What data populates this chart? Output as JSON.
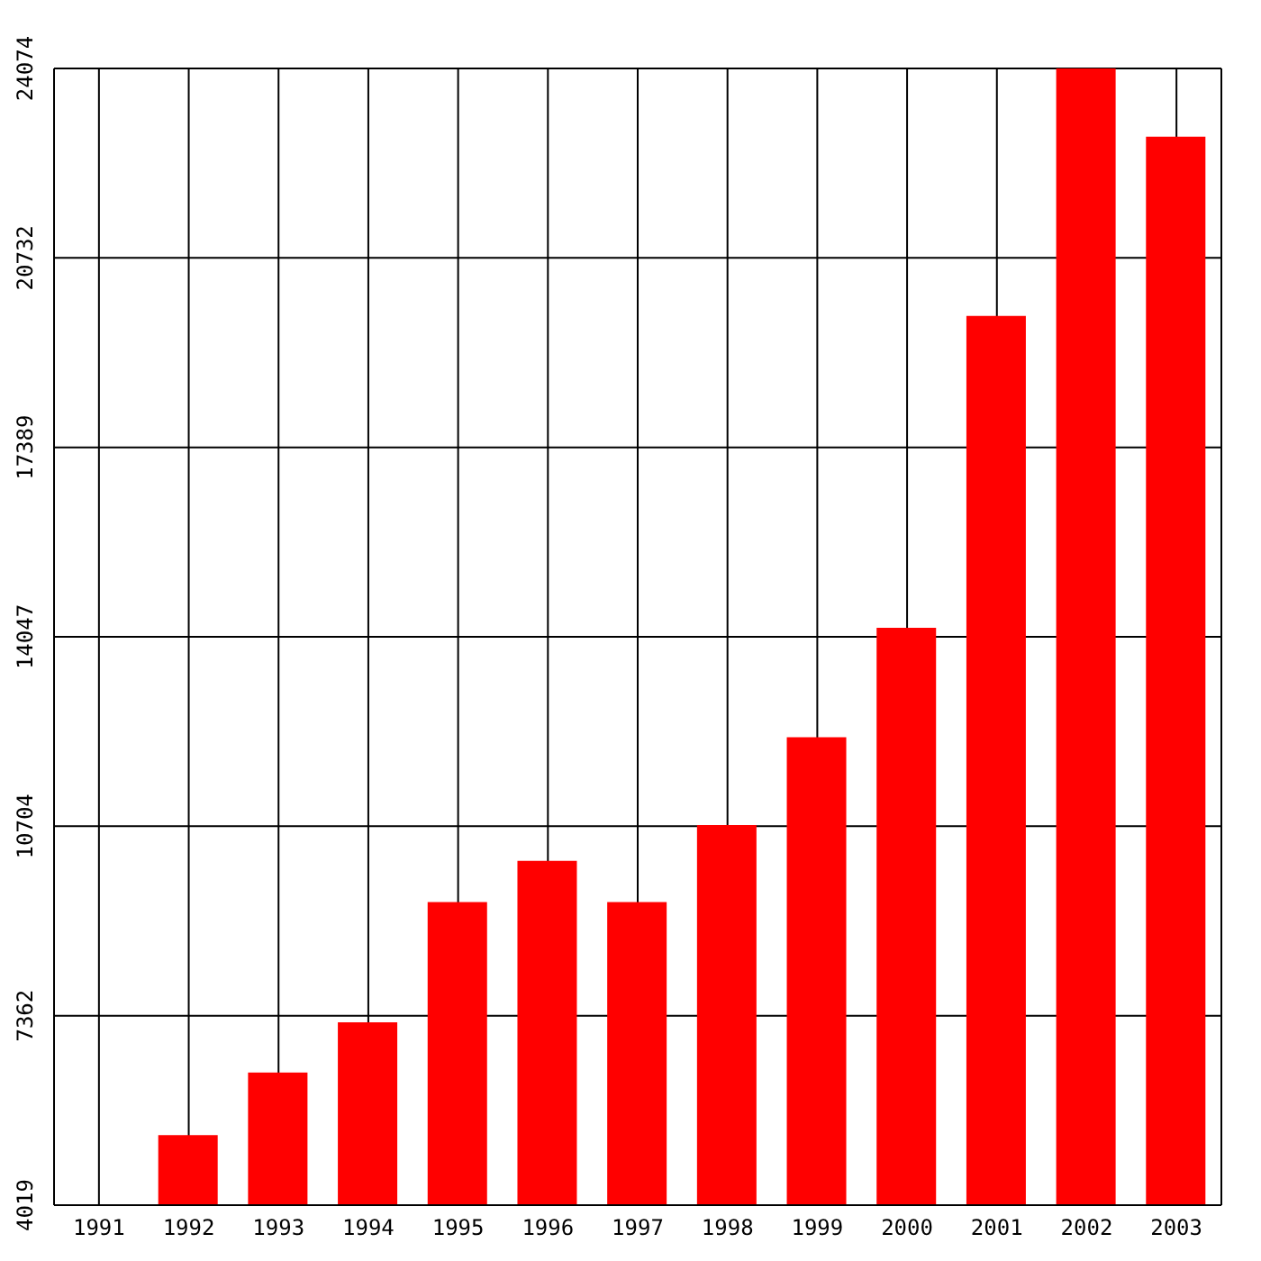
{
  "chart_data": {
    "type": "bar",
    "categories": [
      "1991",
      "1992",
      "1993",
      "1994",
      "1995",
      "1996",
      "1997",
      "1998",
      "1999",
      "2000",
      "2001",
      "2002",
      "2003"
    ],
    "values": [
      null,
      5253,
      6360,
      7245,
      9365,
      10092,
      9365,
      10725,
      12275,
      14204,
      19708,
      24074,
      22871
    ],
    "color": "#ff0000",
    "ylim": [
      4019,
      24074
    ],
    "yticks": [
      4019,
      7362,
      10704,
      14047,
      17389,
      20732,
      24074
    ],
    "grid": true
  }
}
